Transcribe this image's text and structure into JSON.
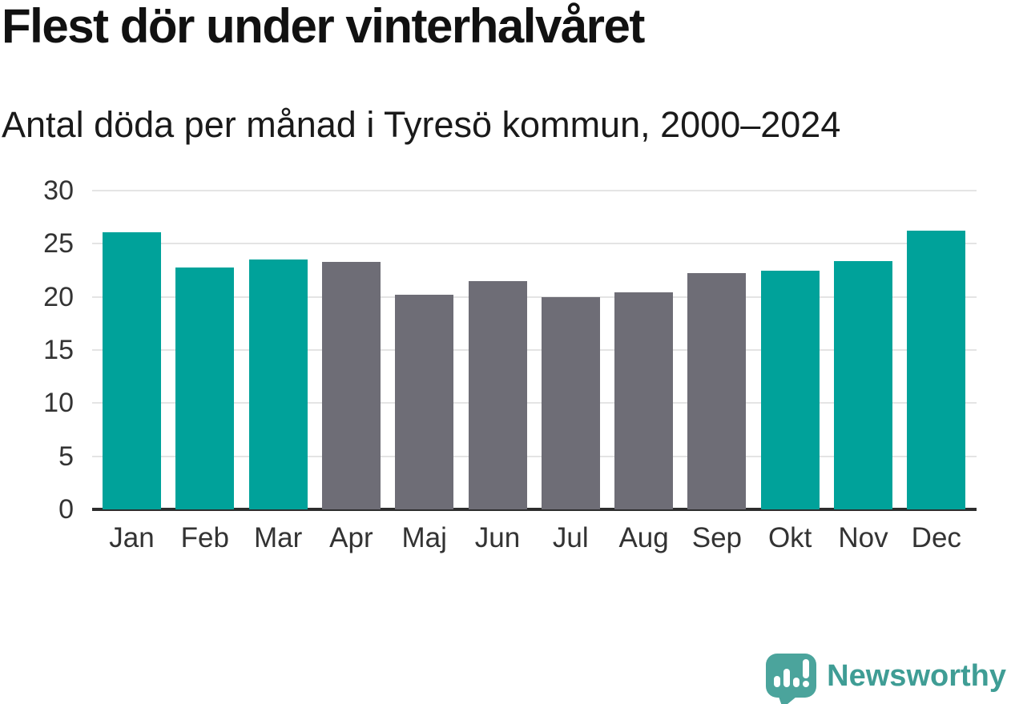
{
  "chart_data": {
    "type": "bar",
    "title": "Flest dör under vinterhalvåret",
    "subtitle": "Antal döda per månad i Tyresö kommun, 2000–2024",
    "categories": [
      "Jan",
      "Feb",
      "Mar",
      "Apr",
      "Maj",
      "Jun",
      "Jul",
      "Aug",
      "Sep",
      "Okt",
      "Nov",
      "Dec"
    ],
    "values": [
      26.1,
      22.8,
      23.5,
      23.3,
      20.2,
      21.5,
      20.0,
      20.4,
      22.2,
      22.5,
      23.4,
      26.2
    ],
    "season": [
      "winter",
      "winter",
      "winter",
      "summer",
      "summer",
      "summer",
      "summer",
      "summer",
      "summer",
      "winter",
      "winter",
      "winter"
    ],
    "xlabel": "",
    "ylabel": "",
    "ylim": [
      0,
      30
    ],
    "yticks": [
      0,
      5,
      10,
      15,
      20,
      25,
      30
    ],
    "grid": "horizontal",
    "legend": "none",
    "colors": {
      "winter_bar": "#00a29a",
      "summer_bar": "#6e6d76",
      "gridline": "#e4e4e4",
      "axis_line": "#2d2d2d",
      "tick_label": "#333333"
    }
  },
  "branding": {
    "name": "Newsworthy",
    "text_color": "#3f9d95",
    "logo_color": "#4ba49c"
  }
}
